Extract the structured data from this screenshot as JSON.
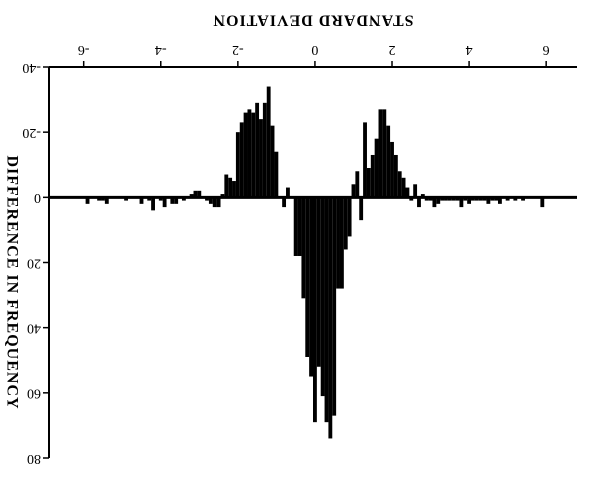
{
  "chart_data": {
    "type": "bar",
    "orientation": "mirrored",
    "title": "",
    "xlabel": "STANDARD DEVIATION",
    "ylabel": "DIFFERENCE IN FREQUENCY",
    "x_ticks": [
      -6,
      -4,
      -2,
      0,
      2,
      4,
      6
    ],
    "x_tick_labels": [
      "-6",
      "-4",
      "-2",
      "0",
      "2",
      "4",
      "6"
    ],
    "y_ticks": [
      -40,
      -20,
      0,
      20,
      40,
      60,
      80
    ],
    "y_tick_labels": [
      "-40",
      "-20",
      "0",
      "20",
      "40",
      "60",
      "80"
    ],
    "xlim": [
      -6.9,
      6.8
    ],
    "ylim": [
      -40,
      80
    ],
    "bar_width": 0.1,
    "bar_color": "#000000",
    "grid": false,
    "x": [
      -5.9,
      -5.6,
      -5.5,
      -5.4,
      -4.9,
      -4.5,
      -4.3,
      -4.2,
      -4.0,
      -3.9,
      -3.7,
      -3.6,
      -3.4,
      -3.2,
      -3.1,
      -3.0,
      -2.8,
      -2.7,
      -2.6,
      -2.5,
      -2.4,
      -2.3,
      -2.2,
      -2.1,
      -2.0,
      -1.9,
      -1.8,
      -1.7,
      -1.6,
      -1.5,
      -1.4,
      -1.3,
      -1.2,
      -1.1,
      -1.0,
      -0.9,
      -0.8,
      -0.7,
      -0.6,
      -0.5,
      -0.4,
      -0.3,
      -0.2,
      -0.1,
      0.0,
      0.1,
      0.2,
      0.3,
      0.4,
      0.5,
      0.6,
      0.7,
      0.8,
      0.9,
      1.0,
      1.1,
      1.2,
      1.3,
      1.4,
      1.5,
      1.6,
      1.7,
      1.8,
      1.9,
      2.0,
      2.1,
      2.2,
      2.3,
      2.4,
      2.5,
      2.6,
      2.7,
      2.8,
      2.9,
      3.0,
      3.1,
      3.2,
      3.3,
      3.4,
      3.5,
      3.6,
      3.7,
      3.8,
      3.9,
      4.0,
      4.1,
      4.2,
      4.3,
      4.4,
      4.5,
      4.6,
      4.7,
      4.8,
      5.0,
      5.2,
      5.4,
      5.9
    ],
    "values": [
      2,
      1,
      1,
      2,
      1,
      2,
      1,
      4,
      1,
      3,
      2,
      2,
      1,
      -1,
      -2,
      -2,
      1,
      2,
      3,
      3,
      -1,
      -7,
      -6,
      -5,
      -20,
      -23,
      -26,
      -27,
      -26,
      -29,
      -24,
      -29,
      -34,
      -22,
      -14,
      0,
      3,
      -3,
      0,
      18,
      18,
      31,
      49,
      55,
      69,
      52,
      61,
      69,
      74,
      67,
      28,
      28,
      16,
      12,
      -4,
      -8,
      7,
      -23,
      -9,
      -13,
      -18,
      -27,
      -27,
      -22,
      -17,
      -13,
      -8,
      -6,
      -3,
      1,
      -4,
      3,
      -1,
      1,
      1,
      3,
      2,
      1,
      1,
      1,
      1,
      1,
      3,
      1,
      2,
      1,
      1,
      1,
      1,
      2,
      1,
      1,
      2,
      1,
      1,
      1,
      3
    ]
  }
}
